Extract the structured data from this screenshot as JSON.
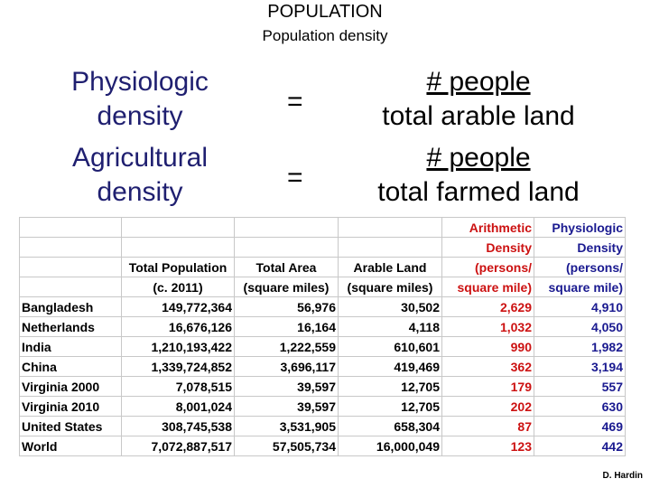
{
  "title": "POPULATION",
  "subtitle": "Population density",
  "definitions": [
    {
      "term_line1": "Physiologic",
      "term_line2": "density",
      "equals": "=",
      "numerator": "# people",
      "denominator": "total arable land"
    },
    {
      "term_line1": "Agricultural",
      "term_line2": "density",
      "equals": "=",
      "numerator": "# people",
      "denominator": "total farmed land"
    }
  ],
  "table": {
    "header_rows": [
      [
        "",
        "",
        "",
        "",
        "Arithmetic",
        "Physiologic"
      ],
      [
        "",
        "",
        "",
        "",
        "Density",
        "Density"
      ],
      [
        "",
        "Total Population",
        "Total Area",
        "Arable Land",
        "(persons/",
        "(persons/"
      ],
      [
        "",
        "(c. 2011)",
        "(square miles)",
        "(square miles)",
        "square mile)",
        "square mile)"
      ]
    ],
    "rows": [
      [
        "Bangladesh",
        "149,772,364",
        "56,976",
        "30,502",
        "2,629",
        "4,910"
      ],
      [
        "Netherlands",
        "16,676,126",
        "16,164",
        "4,118",
        "1,032",
        "4,050"
      ],
      [
        "India",
        "1,210,193,422",
        "1,222,559",
        "610,601",
        "990",
        "1,982"
      ],
      [
        "China",
        "1,339,724,852",
        "3,696,117",
        "419,469",
        "362",
        "3,194"
      ],
      [
        "Virginia 2000",
        "7,078,515",
        "39,597",
        "12,705",
        "179",
        "557"
      ],
      [
        "Virginia 2010",
        "8,001,024",
        "39,597",
        "12,705",
        "202",
        "630"
      ],
      [
        "United States",
        "308,745,538",
        "3,531,905",
        "658,304",
        "87",
        "469"
      ],
      [
        "World",
        "7,072,887,517",
        "57,505,734",
        "16,000,049",
        "123",
        "442"
      ]
    ]
  },
  "credit": "D. Hardin",
  "colors": {
    "term": "#1f1f70",
    "arithmetic": "#cc1111",
    "physiologic": "#1a1a90",
    "grid": "#c8c8c8"
  }
}
